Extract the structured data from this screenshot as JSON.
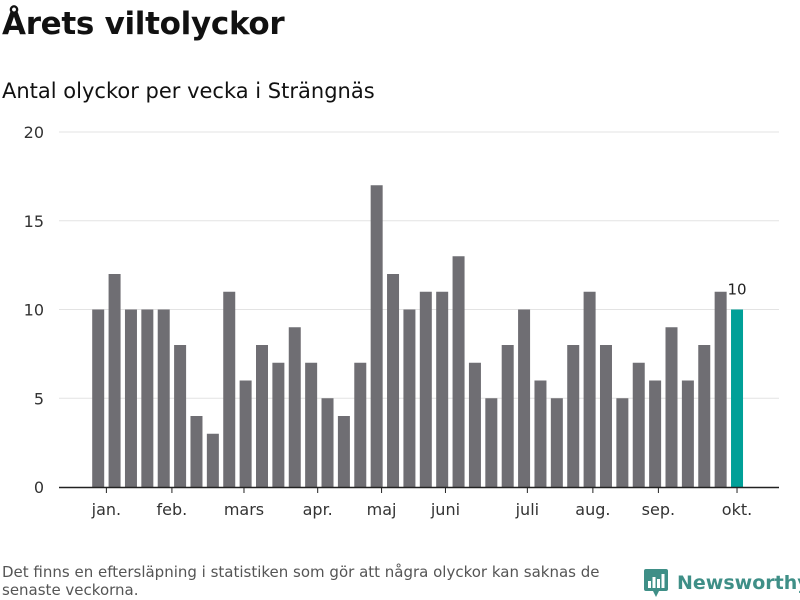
{
  "header": {
    "title": "Årets viltolyckor",
    "subtitle": "Antal olyckor per vecka i Strängnäs"
  },
  "footer": {
    "note": "Det finns en eftersläpning i statistiken som gör att några olyckor kan saknas de senaste veckorna.",
    "brand": "Newsworthy"
  },
  "colors": {
    "bar": "#6f6e73",
    "highlight": "#00a098",
    "grid": "#e3e3e3",
    "axis": "#222222",
    "brand": "#3f8f87"
  },
  "icons": {
    "brand_logo": "newsworthy-logo-icon"
  },
  "chart_data": {
    "type": "bar",
    "title": "Antal olyckor per vecka i Strängnäs",
    "xlabel": "",
    "ylabel": "",
    "ylim": [
      0,
      20
    ],
    "yticks": [
      0,
      5,
      10,
      15,
      20
    ],
    "grid": true,
    "legend": "none",
    "weeks": [
      1,
      2,
      3,
      4,
      5,
      6,
      7,
      8,
      9,
      10,
      11,
      12,
      13,
      14,
      15,
      16,
      17,
      18,
      19,
      20,
      21,
      22,
      23,
      24,
      25,
      26,
      27,
      28,
      29,
      30,
      31,
      32,
      33,
      34,
      35,
      36,
      37,
      38,
      39,
      40
    ],
    "values": [
      10,
      12,
      10,
      10,
      10,
      8,
      4,
      3,
      11,
      6,
      8,
      7,
      9,
      7,
      5,
      4,
      7,
      17,
      12,
      10,
      11,
      11,
      13,
      7,
      5,
      8,
      10,
      6,
      5,
      8,
      11,
      8,
      5,
      7,
      6,
      9,
      6,
      8,
      11,
      10
    ],
    "highlight_week": 40,
    "highlight_label": "10",
    "month_ticks": [
      {
        "label": "jan.",
        "week": 1.5
      },
      {
        "label": "feb.",
        "week": 5.5
      },
      {
        "label": "mars",
        "week": 9.9
      },
      {
        "label": "apr.",
        "week": 14.4
      },
      {
        "label": "maj",
        "week": 18.3
      },
      {
        "label": "juni",
        "week": 22.2
      },
      {
        "label": "juli",
        "week": 27.2
      },
      {
        "label": "aug.",
        "week": 31.2
      },
      {
        "label": "sep.",
        "week": 35.2
      },
      {
        "label": "okt.",
        "week": 40.0
      }
    ]
  }
}
